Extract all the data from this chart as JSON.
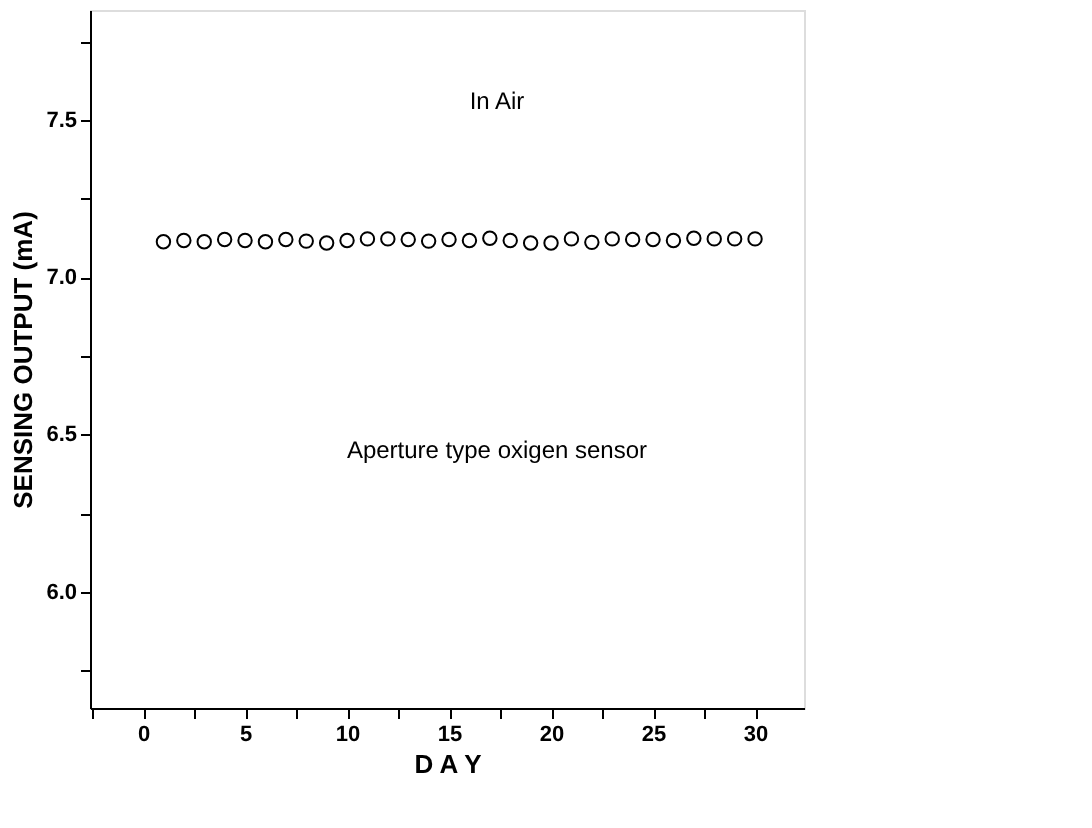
{
  "chart_data": {
    "type": "scatter",
    "xlabel": "D A Y",
    "ylabel": "SENSING OUTPUT (mA)",
    "x": [
      1,
      2,
      3,
      4,
      5,
      6,
      7,
      8,
      9,
      10,
      11,
      12,
      13,
      14,
      15,
      16,
      17,
      18,
      19,
      20,
      21,
      22,
      23,
      24,
      25,
      26,
      27,
      28,
      29,
      30
    ],
    "series": [
      {
        "color": "#000000",
        "values": [
          7.113,
          7.117,
          7.113,
          7.12,
          7.117,
          7.113,
          7.12,
          7.115,
          7.109,
          7.117,
          7.122,
          7.122,
          7.12,
          7.115,
          7.12,
          7.117,
          7.124,
          7.117,
          7.109,
          7.109,
          7.122,
          7.111,
          7.122,
          7.12,
          7.12,
          7.117,
          7.124,
          7.122,
          7.122,
          7.122
        ]
      }
    ],
    "xlim": [
      -2.6,
      32.4
    ],
    "xticks": [
      {
        "value": -2.5,
        "label": null
      },
      0,
      {
        "value": 2.5,
        "label": null
      },
      5,
      {
        "value": 7.5,
        "label": null
      },
      10,
      {
        "value": 12.5,
        "label": null
      },
      15,
      {
        "value": 17.5,
        "label": null
      },
      20,
      {
        "value": 22.5,
        "label": null
      },
      25,
      {
        "value": 27.5,
        "label": null
      },
      30
    ],
    "ylim": [
      5.63,
      7.85
    ],
    "yticks": [
      {
        "value": 5.75,
        "label": null
      },
      {
        "value": 6.0,
        "label": "6.0"
      },
      {
        "value": 6.25,
        "label": null
      },
      6.5,
      {
        "value": 6.75,
        "label": null
      },
      {
        "value": 7.0,
        "label": "7.0"
      },
      {
        "value": 7.25,
        "label": null
      },
      7.5,
      {
        "value": 7.75,
        "label": null
      }
    ],
    "annotations": [
      "In Air",
      "Aperture type oxigen sensor"
    ],
    "marker": "circle",
    "grid": false
  }
}
